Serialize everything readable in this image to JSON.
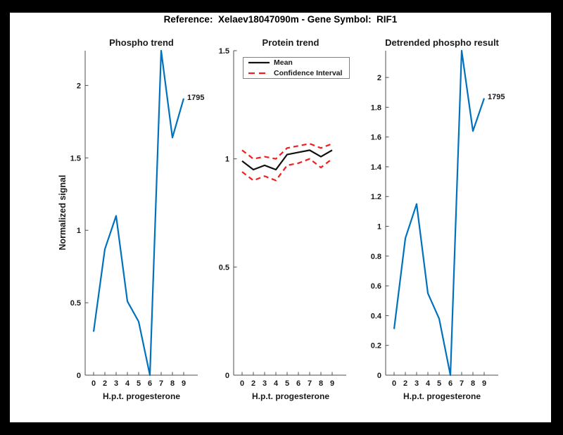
{
  "figure": {
    "title": "Reference:  Xelaev18047090m - Gene Symbol:  RIF1",
    "background_color": "#000000",
    "canvas_color": "#ffffff"
  },
  "colors": {
    "axis": "#4d4d4d",
    "text": "#1a1a1a",
    "blue_line": "#0072bd",
    "mean_line": "#111111",
    "ci_line": "#ee2020",
    "legend_border": "#808080"
  },
  "legend": {
    "mean_label": "Mean",
    "ci_label": "Confidence Interval"
  },
  "annotations": {
    "phospho_end_label": "1795",
    "detrended_end_label": "1795"
  },
  "chart_data": [
    {
      "type": "line",
      "title": "Phospho trend",
      "xlabel": "H.p.t. progesterone",
      "ylabel": "Normalized signal",
      "categories": [
        "0",
        "2",
        "3",
        "4",
        "5",
        "6",
        "7",
        "8",
        "9"
      ],
      "series": [
        {
          "name": "phospho-signal",
          "color": "#0072bd",
          "style": "solid",
          "values": [
            0.3,
            0.87,
            1.1,
            0.51,
            0.37,
            0.0,
            2.24,
            1.64,
            1.91
          ]
        }
      ],
      "ylim": [
        0,
        2.24
      ],
      "yticks": [
        "0",
        "0.5",
        "1",
        "1.5",
        "2"
      ],
      "grid": false,
      "annotation": {
        "text": "1795",
        "at_category": "9",
        "value": 1.91
      }
    },
    {
      "type": "line",
      "title": "Protein trend",
      "xlabel": "H.p.t. progesterone",
      "ylabel": "",
      "categories": [
        "0",
        "2",
        "3",
        "4",
        "5",
        "6",
        "7",
        "8",
        "9"
      ],
      "series": [
        {
          "name": "mean",
          "color": "#111111",
          "style": "solid",
          "values": [
            0.99,
            0.95,
            0.97,
            0.95,
            1.02,
            1.03,
            1.04,
            1.01,
            1.04
          ]
        },
        {
          "name": "confidence-interval-upper",
          "color": "#ee2020",
          "style": "dashed",
          "values": [
            1.04,
            1.0,
            1.01,
            1.0,
            1.05,
            1.06,
            1.07,
            1.05,
            1.07
          ]
        },
        {
          "name": "confidence-interval-lower",
          "color": "#ee2020",
          "style": "dashed",
          "values": [
            0.94,
            0.9,
            0.92,
            0.9,
            0.97,
            0.98,
            1.0,
            0.96,
            1.0
          ]
        }
      ],
      "ylim": [
        0,
        1.5
      ],
      "yticks": [
        "0",
        "0.5",
        "1",
        "1.5"
      ],
      "grid": false,
      "legend_entries": [
        "Mean",
        "Confidence Interval"
      ],
      "legend_position": "top-left"
    },
    {
      "type": "line",
      "title": "Detrended phospho result",
      "xlabel": "H.p.t. progesterone",
      "ylabel": "",
      "categories": [
        "0",
        "2",
        "3",
        "4",
        "5",
        "6",
        "7",
        "8",
        "9"
      ],
      "series": [
        {
          "name": "detrended-phospho",
          "color": "#0072bd",
          "style": "solid",
          "values": [
            0.31,
            0.92,
            1.15,
            0.55,
            0.38,
            0.0,
            2.18,
            1.64,
            1.86
          ]
        }
      ],
      "ylim": [
        0,
        2.18
      ],
      "yticks": [
        "0",
        "0.2",
        "0.4",
        "0.6",
        "0.8",
        "1",
        "1.2",
        "1.4",
        "1.6",
        "1.8",
        "2"
      ],
      "grid": false,
      "annotation": {
        "text": "1795",
        "at_category": "9",
        "value": 1.86
      }
    }
  ]
}
